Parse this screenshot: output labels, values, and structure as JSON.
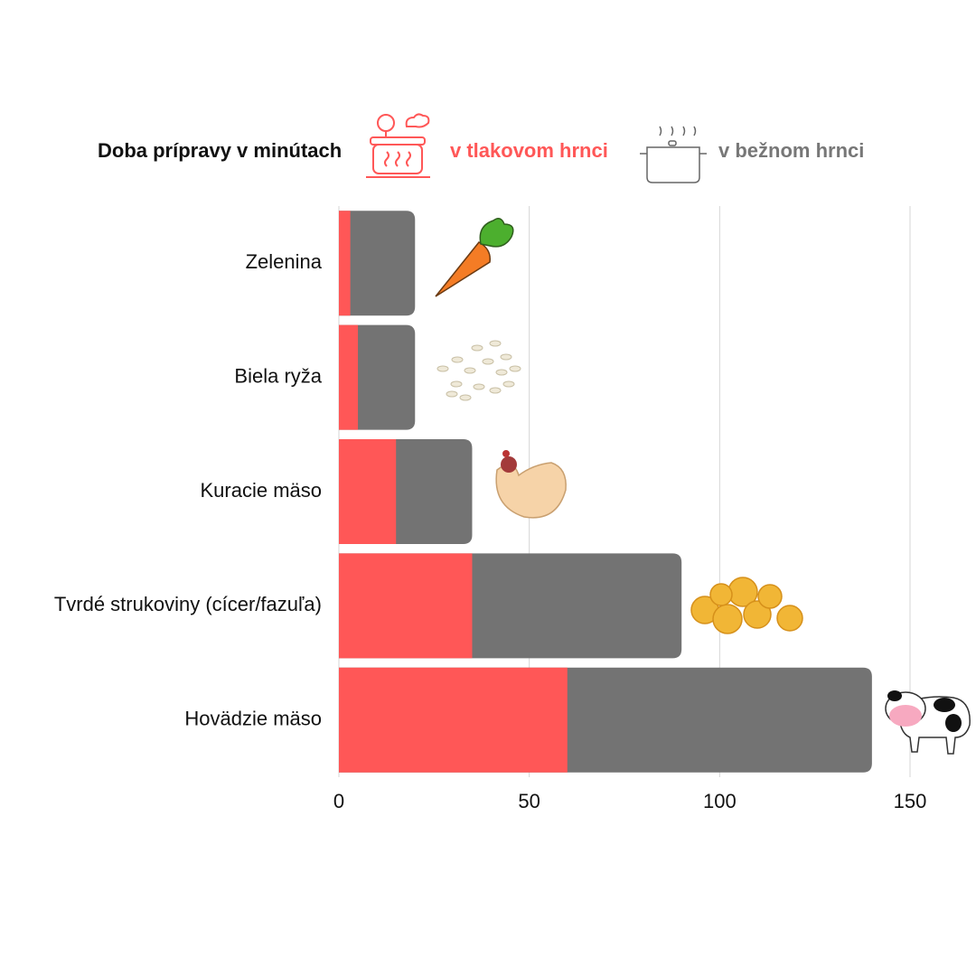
{
  "chart_data": {
    "type": "bar",
    "orientation": "horizontal",
    "title": "Doba prípravy v minútach",
    "categories": [
      "Zelenina",
      "Biela ryža",
      "Kuracie mäso",
      "Tvrdé strukoviny (cícer/fazuľa)",
      "Hovädzie mäso"
    ],
    "series": [
      {
        "name": "v tlakovom hrnci",
        "color": "#ff5757",
        "values": [
          3,
          5,
          15,
          35,
          60
        ]
      },
      {
        "name": "v bežnom hrnci",
        "color": "#737373",
        "values": [
          20,
          20,
          35,
          90,
          140
        ]
      }
    ],
    "xlim": [
      0,
      150
    ],
    "xticks": [
      0,
      50,
      100,
      150
    ],
    "grid": true
  }
}
